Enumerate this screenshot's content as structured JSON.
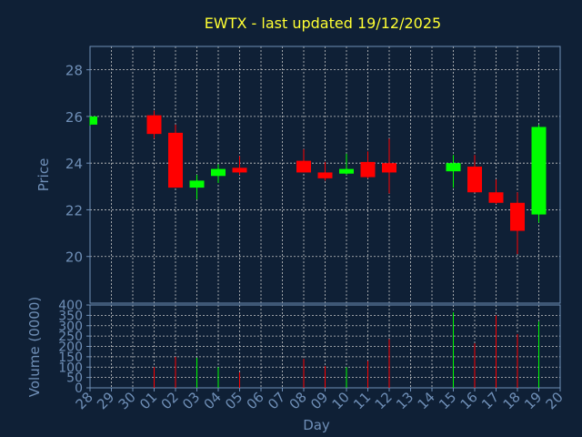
{
  "chart_data": [
    {
      "type": "candlestick",
      "title": "EWTX - last updated 19/12/2025",
      "ylabel": "Price",
      "ylim": [
        18,
        29
      ],
      "yticks": [
        20,
        22,
        24,
        26,
        28
      ],
      "x_ticks": [
        "28",
        "29",
        "30",
        "01",
        "02",
        "03",
        "04",
        "05",
        "06",
        "07",
        "08",
        "09",
        "10",
        "11",
        "12",
        "13",
        "14",
        "15",
        "16",
        "17",
        "18",
        "19",
        "20"
      ],
      "candles": [
        {
          "x": "28",
          "open": 25.65,
          "high": 26.0,
          "low": 25.6,
          "close": 26.0
        },
        {
          "x": "01",
          "open": 26.05,
          "high": 26.25,
          "low": 25.05,
          "close": 25.25
        },
        {
          "x": "02",
          "open": 25.3,
          "high": 25.65,
          "low": 22.95,
          "close": 22.95
        },
        {
          "x": "03",
          "open": 22.95,
          "high": 23.5,
          "low": 22.45,
          "close": 23.25
        },
        {
          "x": "04",
          "open": 23.45,
          "high": 23.95,
          "low": 23.15,
          "close": 23.75
        },
        {
          "x": "05",
          "open": 23.8,
          "high": 24.3,
          "low": 23.5,
          "close": 23.6
        },
        {
          "x": "08",
          "open": 24.1,
          "high": 24.6,
          "low": 23.6,
          "close": 23.6
        },
        {
          "x": "09",
          "open": 23.6,
          "high": 24.05,
          "low": 23.25,
          "close": 23.35
        },
        {
          "x": "10",
          "open": 23.55,
          "high": 24.4,
          "low": 23.5,
          "close": 23.75
        },
        {
          "x": "11",
          "open": 24.05,
          "high": 24.5,
          "low": 23.35,
          "close": 23.4
        },
        {
          "x": "12",
          "open": 24.0,
          "high": 25.05,
          "low": 22.7,
          "close": 23.6
        },
        {
          "x": "15",
          "open": 23.65,
          "high": 24.35,
          "low": 22.95,
          "close": 24.0
        },
        {
          "x": "16",
          "open": 23.85,
          "high": 24.35,
          "low": 22.75,
          "close": 22.75
        },
        {
          "x": "17",
          "open": 22.75,
          "high": 23.3,
          "low": 22.25,
          "close": 22.3
        },
        {
          "x": "18",
          "open": 22.3,
          "high": 22.75,
          "low": 20.1,
          "close": 21.1
        },
        {
          "x": "19",
          "open": 21.8,
          "high": 25.65,
          "low": 21.45,
          "close": 25.55
        }
      ]
    },
    {
      "type": "bar",
      "ylabel": "Volume (0000)",
      "xlabel": "Day",
      "ylim": [
        0,
        400
      ],
      "yticks": [
        0,
        50,
        100,
        150,
        200,
        250,
        300,
        350,
        400
      ],
      "bars": [
        {
          "x": "01",
          "value": 100,
          "color": "#ff0000"
        },
        {
          "x": "02",
          "value": 150,
          "color": "#ff0000"
        },
        {
          "x": "03",
          "value": 145,
          "color": "#00ff00"
        },
        {
          "x": "04",
          "value": 100,
          "color": "#00ff00"
        },
        {
          "x": "05",
          "value": 75,
          "color": "#ff0000"
        },
        {
          "x": "08",
          "value": 140,
          "color": "#ff0000"
        },
        {
          "x": "09",
          "value": 105,
          "color": "#ff0000"
        },
        {
          "x": "10",
          "value": 100,
          "color": "#00ff00"
        },
        {
          "x": "11",
          "value": 130,
          "color": "#ff0000"
        },
        {
          "x": "12",
          "value": 235,
          "color": "#ff0000"
        },
        {
          "x": "15",
          "value": 365,
          "color": "#00ff00"
        },
        {
          "x": "16",
          "value": 215,
          "color": "#ff0000"
        },
        {
          "x": "17",
          "value": 350,
          "color": "#ff0000"
        },
        {
          "x": "18",
          "value": 260,
          "color": "#ff0000"
        },
        {
          "x": "19",
          "value": 320,
          "color": "#00ff00"
        }
      ]
    }
  ],
  "colors": {
    "background": "#0f2036",
    "axis": "#6f8fb7",
    "grid": "#c8c8c8",
    "title": "#ffff33",
    "up": "#00ff00",
    "down": "#ff0000"
  }
}
